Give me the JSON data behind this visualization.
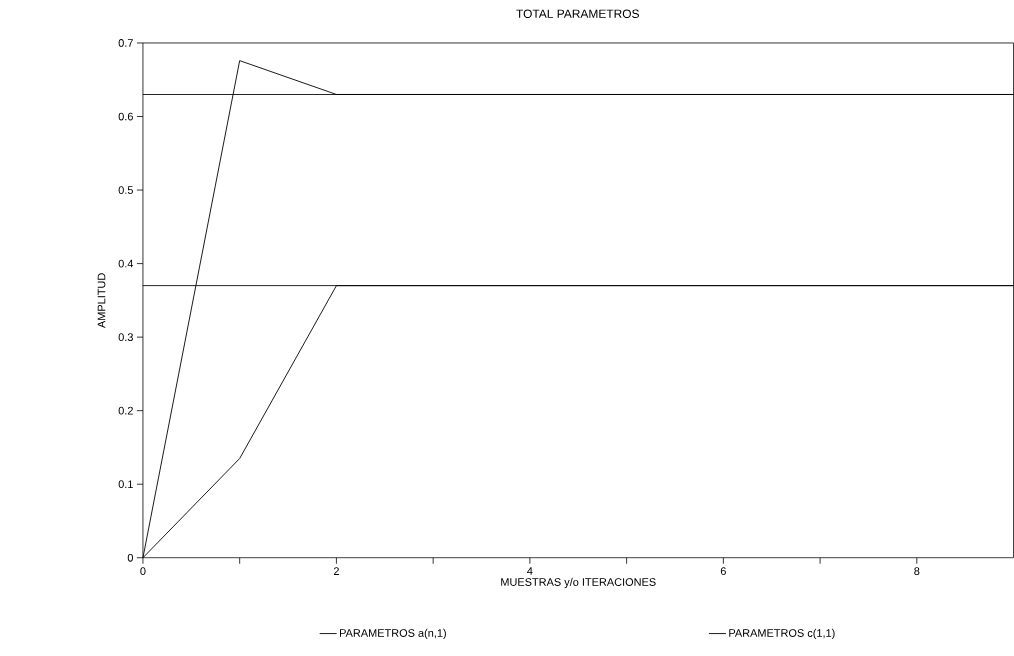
{
  "chart_data": {
    "type": "line",
    "title": "TOTAL PARAMETROS",
    "xlabel": "MUESTRAS y/o ITERACIONES",
    "ylabel": "AMPLITUD",
    "x": [
      0,
      1,
      2,
      3,
      4,
      5,
      6,
      7,
      8,
      9
    ],
    "series": [
      {
        "name": "PARAMETROS a(n,1)",
        "color": "#000000",
        "values": [
          0,
          0.676,
          0.63,
          0.63,
          0.63,
          0.63,
          0.63,
          0.63,
          0.63,
          0.63
        ]
      },
      {
        "name": "PARAMETROS c(1,1)",
        "color": "#000000",
        "values": [
          0,
          0.135,
          0.37,
          0.37,
          0.37,
          0.37,
          0.37,
          0.37,
          0.37,
          0.37
        ]
      }
    ],
    "ref_lines": [
      {
        "axis": "y",
        "value": 0.63
      },
      {
        "axis": "y",
        "value": 0.37
      }
    ],
    "xlim": [
      0,
      9
    ],
    "ylim": [
      0,
      0.7
    ],
    "xticks": [
      0,
      {
        "value": 1,
        "label": null
      },
      2,
      {
        "value": 3,
        "label": null
      },
      4,
      {
        "value": 5,
        "label": null
      },
      6,
      {
        "value": 7,
        "label": null
      },
      8
    ],
    "yticks": [
      0,
      0.1,
      0.2,
      0.3,
      0.4,
      0.5,
      0.6,
      0.7
    ],
    "legend": "bottom",
    "marker": "none",
    "line_style": "solid",
    "grid": false
  }
}
